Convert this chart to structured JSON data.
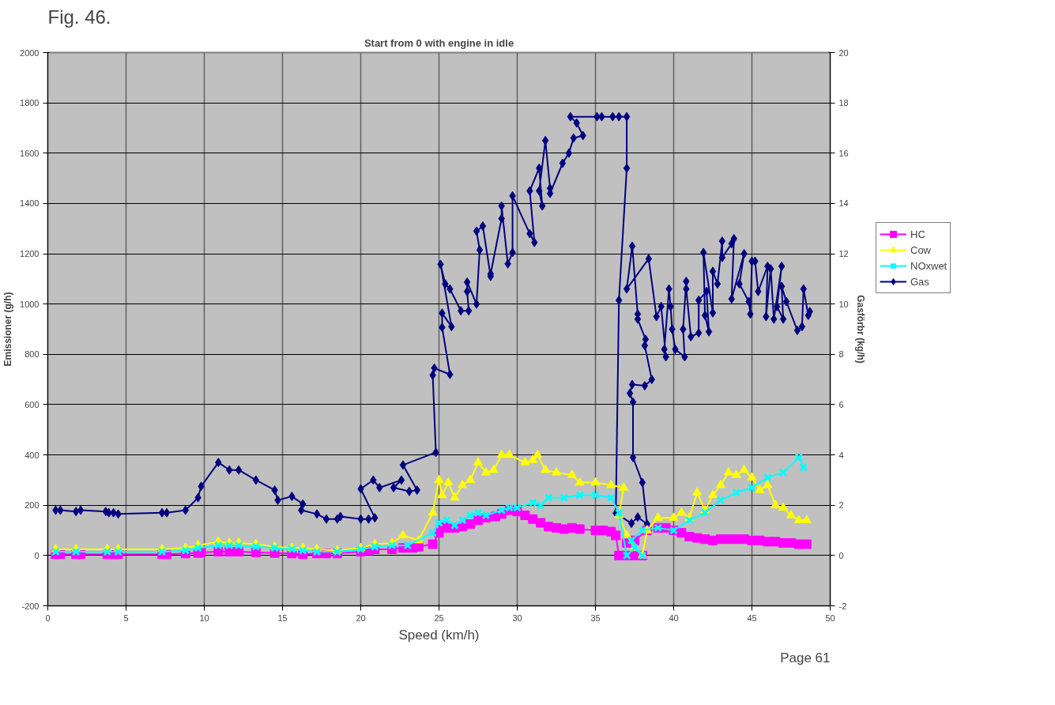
{
  "chart_data": {
    "type": "line",
    "title": "Start from 0 with engine in idle",
    "xlabel": "Speed (km/h)",
    "ylabel": "Emissioner (g/h)",
    "y2label": "Gasförbr (kg/h)",
    "annotations": [
      "Fig. 46.",
      "Page 61"
    ],
    "xlim": [
      0,
      50
    ],
    "xticks": [
      0,
      5,
      10,
      15,
      20,
      25,
      30,
      35,
      40,
      45,
      50
    ],
    "ylim": [
      -200,
      2000
    ],
    "yticks": [
      -200,
      0,
      200,
      400,
      600,
      800,
      1000,
      1200,
      1400,
      1600,
      1800,
      2000
    ],
    "y2lim": [
      -2,
      20
    ],
    "y2ticks": [
      -2,
      0,
      2,
      4,
      6,
      8,
      10,
      12,
      14,
      16,
      18,
      20
    ],
    "grid": true,
    "legend": "right",
    "line_style": "solid",
    "series": [
      {
        "name": "HC",
        "color": "#ff00ff",
        "marker": "square",
        "x": [
          0.5,
          0.8,
          1.8,
          2.1,
          3.8,
          4.2,
          4.5,
          7.3,
          7.6,
          8.8,
          9.6,
          9.8,
          10.9,
          11.6,
          12.2,
          13.3,
          14.5,
          15.6,
          16.3,
          17.2,
          17.8,
          18.5,
          20.0,
          20.5,
          20.9,
          22.0,
          22.7,
          23.3,
          23.7,
          24.6,
          25.0,
          25.3,
          25.6,
          26.0,
          26.5,
          27.0,
          27.5,
          28.0,
          28.6,
          29.0,
          29.5,
          30.0,
          30.5,
          31.0,
          31.5,
          32.0,
          32.5,
          33.0,
          33.5,
          34.0,
          35.0,
          35.5,
          36.0,
          36.3,
          36.5,
          37.0,
          37.5,
          38.0,
          37.0,
          37.5,
          38.3,
          39.0,
          39.5,
          40.0,
          40.5,
          41.0,
          41.5,
          42.0,
          42.5,
          43.0,
          43.5,
          44.0,
          44.5,
          45.0,
          45.5,
          46.0,
          46.5,
          47.0,
          47.5,
          48.0,
          48.5
        ],
        "values": [
          5,
          5,
          5,
          5,
          5,
          5,
          5,
          5,
          5,
          8,
          10,
          12,
          15,
          15,
          15,
          12,
          10,
          8,
          5,
          8,
          8,
          8,
          15,
          20,
          25,
          25,
          30,
          30,
          35,
          45,
          90,
          120,
          110,
          110,
          115,
          125,
          140,
          150,
          155,
          165,
          180,
          175,
          160,
          145,
          130,
          115,
          110,
          105,
          110,
          105,
          100,
          100,
          95,
          80,
          0,
          0,
          0,
          0,
          50,
          60,
          100,
          110,
          110,
          100,
          90,
          75,
          70,
          65,
          60,
          65,
          65,
          65,
          65,
          60,
          60,
          55,
          55,
          50,
          50,
          45,
          45
        ]
      },
      {
        "name": "Cow",
        "color": "#ffff00",
        "marker": "triangle",
        "x": [
          0.5,
          1.8,
          3.8,
          4.5,
          7.3,
          8.8,
          9.6,
          10.9,
          11.6,
          12.2,
          13.3,
          14.5,
          15.6,
          16.3,
          17.2,
          18.5,
          20.0,
          20.9,
          22.0,
          22.7,
          23.7,
          24.6,
          25.0,
          25.2,
          25.6,
          26.0,
          26.5,
          27.0,
          27.5,
          28.0,
          28.5,
          29.0,
          29.5,
          30.5,
          31.0,
          31.3,
          31.8,
          32.5,
          33.5,
          34.0,
          35.0,
          36.0,
          36.8,
          36.5,
          37.0,
          37.5,
          38.0,
          38.3,
          39.0,
          40.0,
          40.5,
          41.0,
          41.5,
          42.0,
          42.5,
          43.0,
          43.5,
          44.0,
          44.5,
          45.0,
          45.5,
          46.0,
          46.5,
          47.0,
          47.5,
          48.0,
          48.5
        ],
        "values": [
          25,
          25,
          25,
          25,
          25,
          30,
          40,
          55,
          50,
          50,
          45,
          35,
          30,
          30,
          25,
          20,
          30,
          45,
          50,
          80,
          60,
          170,
          300,
          240,
          290,
          230,
          280,
          300,
          370,
          330,
          340,
          400,
          400,
          370,
          380,
          400,
          340,
          330,
          320,
          290,
          290,
          280,
          270,
          160,
          80,
          30,
          0,
          100,
          150,
          150,
          170,
          150,
          250,
          180,
          240,
          280,
          330,
          320,
          340,
          310,
          260,
          280,
          200,
          190,
          160,
          140,
          140
        ]
      },
      {
        "name": "NOxwet",
        "color": "#00ffff",
        "marker": "cross",
        "x": [
          0.5,
          1.8,
          3.8,
          4.5,
          7.3,
          8.8,
          9.6,
          10.9,
          11.6,
          12.2,
          13.3,
          14.5,
          15.6,
          16.3,
          17.2,
          18.5,
          20.0,
          20.9,
          22.0,
          23.0,
          24.6,
          25.0,
          25.5,
          26.0,
          26.5,
          27.0,
          27.5,
          28.0,
          29.0,
          29.5,
          30.0,
          31.0,
          31.5,
          32.0,
          33.0,
          34.0,
          35.0,
          36.0,
          36.5,
          37.0,
          37.5,
          38.0,
          37.3,
          38.0,
          39.0,
          40.0,
          41.0,
          42.0,
          43.0,
          44.0,
          45.0,
          46.0,
          47.0,
          48.0,
          48.3
        ],
        "values": [
          15,
          15,
          15,
          15,
          15,
          20,
          30,
          40,
          40,
          40,
          35,
          30,
          25,
          20,
          15,
          15,
          25,
          35,
          40,
          40,
          90,
          130,
          140,
          120,
          140,
          160,
          170,
          160,
          180,
          190,
          190,
          210,
          200,
          230,
          230,
          240,
          240,
          230,
          170,
          0,
          30,
          0,
          60,
          100,
          110,
          100,
          140,
          170,
          220,
          250,
          270,
          310,
          330,
          390,
          350
        ]
      },
      {
        "name": "Gas",
        "color": "#000080",
        "marker": "diamond",
        "axis": "y2",
        "x": [
          0.5,
          0.8,
          1.8,
          2.1,
          3.7,
          3.9,
          4.2,
          4.5,
          7.3,
          7.6,
          8.8,
          9.6,
          9.8,
          10.9,
          11.6,
          12.2,
          13.3,
          14.5,
          14.7,
          15.6,
          16.3,
          16.2,
          17.2,
          17.8,
          18.5,
          18.7,
          20.0,
          20.5,
          20.9,
          20.0,
          20.8,
          21.2,
          22.6,
          22.1,
          23.1,
          23.6,
          22.7,
          24.8,
          24.6,
          24.7,
          25.7,
          25.2,
          25.2,
          25.8,
          25.1,
          25.4,
          25.7,
          26.4,
          26.9,
          26.8,
          26.8,
          27.4,
          27.6,
          27.4,
          27.8,
          28.3,
          28.3,
          29.0,
          29.0,
          29.4,
          29.7,
          29.7,
          30.8,
          31.1,
          30.8,
          31.4,
          31.6,
          31.4,
          31.8,
          32.1,
          32.1,
          32.9,
          33.3,
          33.6,
          34.2,
          33.8,
          33.4,
          35.1,
          35.4,
          36.1,
          36.5,
          37.0,
          37.0,
          36.5,
          36.3,
          37.3,
          37.7,
          38.3,
          38.0,
          37.4,
          37.4,
          37.2,
          37.35,
          38.15,
          38.6,
          38.15,
          38.2,
          37.7,
          37.7,
          37.35,
          37.0,
          38.4,
          38.9,
          39.2,
          39.5,
          39.4,
          39.7,
          39.8,
          39.9,
          40.1,
          40.7,
          40.6,
          40.8,
          40.8,
          41.1,
          41.6,
          41.6,
          42.1,
          42.25,
          42.0,
          41.9,
          42.5,
          42.5,
          42.8,
          43.1,
          43.1,
          43.7,
          43.85,
          43.7,
          44.5,
          44.2,
          44.8,
          44.9,
          45.0,
          45.2,
          45.4,
          46.0,
          45.9,
          46.2,
          46.4,
          46.9,
          46.6,
          47.0,
          46.9,
          47.2,
          47.9,
          48.2,
          48.3,
          48.6,
          48.7
        ],
        "values": [
          1.8,
          1.8,
          1.75,
          1.8,
          1.75,
          1.7,
          1.7,
          1.65,
          1.7,
          1.7,
          1.8,
          2.3,
          2.75,
          3.7,
          3.4,
          3.4,
          3.0,
          2.6,
          2.2,
          2.35,
          2.05,
          1.8,
          1.65,
          1.45,
          1.45,
          1.55,
          1.45,
          1.45,
          1.5,
          2.65,
          3.0,
          2.7,
          3.0,
          2.7,
          2.55,
          2.6,
          3.6,
          4.1,
          7.17,
          7.45,
          7.2,
          9.07,
          9.64,
          9.1,
          11.58,
          10.8,
          10.6,
          9.73,
          9.73,
          10.5,
          10.87,
          10.0,
          12.15,
          12.9,
          13.1,
          11.1,
          11.2,
          13.4,
          13.9,
          11.6,
          12.05,
          14.3,
          12.8,
          12.45,
          14.5,
          15.4,
          13.9,
          14.5,
          16.5,
          14.6,
          14.4,
          15.6,
          16.0,
          16.6,
          16.7,
          17.2,
          17.45,
          17.45,
          17.45,
          17.45,
          17.45,
          17.45,
          15.4,
          10.15,
          1.68,
          1.28,
          1.53,
          1.25,
          2.9,
          3.9,
          6.1,
          6.45,
          6.8,
          6.75,
          7.0,
          8.35,
          8.6,
          9.4,
          9.6,
          12.3,
          10.6,
          11.8,
          9.5,
          9.9,
          7.9,
          8.2,
          10.6,
          9.9,
          9.0,
          8.2,
          7.9,
          9.0,
          10.9,
          10.6,
          8.7,
          8.85,
          10.15,
          10.5,
          8.9,
          9.55,
          12.05,
          9.65,
          11.3,
          10.8,
          12.5,
          11.85,
          12.4,
          12.6,
          10.2,
          12.0,
          10.8,
          10.1,
          9.6,
          11.7,
          11.7,
          10.5,
          11.5,
          9.5,
          11.4,
          9.4,
          11.5,
          9.9,
          9.4,
          10.7,
          10.1,
          8.95,
          9.1,
          10.6,
          9.55,
          9.7
        ]
      }
    ]
  }
}
